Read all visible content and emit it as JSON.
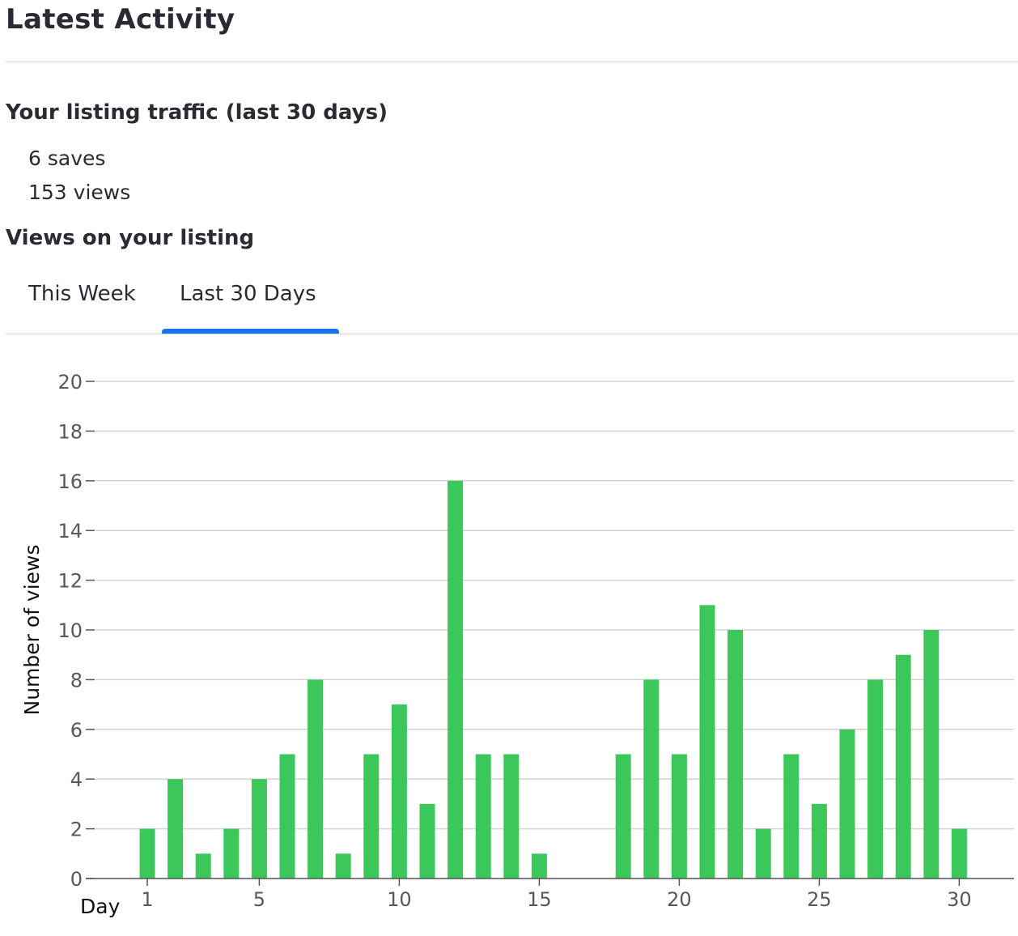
{
  "header": {
    "title": "Latest Activity"
  },
  "traffic": {
    "heading": "Your listing traffic (last 30 days)",
    "saves": "6 saves",
    "views": "153 views"
  },
  "views_section": {
    "heading": "Views on your listing"
  },
  "tabs": [
    {
      "label": "This Week",
      "active": false
    },
    {
      "label": "Last 30 Days",
      "active": true
    }
  ],
  "colors": {
    "bar": "#3cc75a",
    "accent": "#1a73e8",
    "grid": "#d4d4d4"
  },
  "chart_data": {
    "type": "bar",
    "xlabel": "Day",
    "ylabel": "Number of views",
    "ylim": [
      0,
      20
    ],
    "yticks": [
      0,
      2,
      4,
      6,
      8,
      10,
      12,
      14,
      16,
      18,
      20
    ],
    "xticks": [
      1,
      5,
      10,
      15,
      20,
      25,
      30
    ],
    "grid": true,
    "x": [
      1,
      2,
      3,
      4,
      5,
      6,
      7,
      8,
      9,
      10,
      11,
      12,
      13,
      14,
      15,
      16,
      17,
      18,
      19,
      20,
      21,
      22,
      23,
      24,
      25,
      26,
      27,
      28,
      29,
      30
    ],
    "values": [
      2,
      4,
      1,
      2,
      4,
      5,
      8,
      1,
      5,
      7,
      3,
      16,
      5,
      5,
      1,
      0,
      0,
      5,
      8,
      5,
      11,
      10,
      2,
      5,
      3,
      6,
      8,
      9,
      10,
      2
    ]
  }
}
